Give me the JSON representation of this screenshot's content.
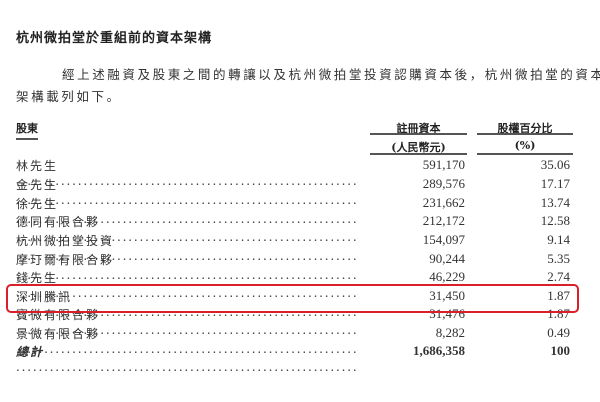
{
  "title": "杭州微拍堂於重組前的資本架構",
  "paragraph": [
    "經上述融資及股東之間的轉讓以及杭州微拍堂投資認購資本後，杭州微拍堂的資本",
    "架構載列如下。"
  ],
  "table": {
    "headers": {
      "shareholder": "股東",
      "capital": "註冊資本",
      "capital_unit": "(人民幣元)",
      "percent": "股權百分比",
      "percent_unit": "(%)"
    },
    "rows": [
      {
        "name": "林先生",
        "capital": "591,170",
        "percent": "35.06"
      },
      {
        "name": "金先生",
        "capital": "289,576",
        "percent": "17.17"
      },
      {
        "name": "徐先生",
        "capital": "231,662",
        "percent": "13.74"
      },
      {
        "name": "德同有限合夥",
        "capital": "212,172",
        "percent": "12.58"
      },
      {
        "name": "杭州微拍堂投資",
        "capital": "154,097",
        "percent": "9.14"
      },
      {
        "name": "摩玎爾有限合夥",
        "capital": "90,244",
        "percent": "5.35"
      },
      {
        "name": "錢先生",
        "capital": "46,229",
        "percent": "2.74"
      },
      {
        "name": "深圳騰訊",
        "capital": "31,450",
        "percent": "1.87"
      },
      {
        "name": "寶微有限合夥",
        "capital": "31,476",
        "percent": "1.87"
      },
      {
        "name": "景微有限合夥",
        "capital": "8,282",
        "percent": "0.49"
      }
    ],
    "total": {
      "name": "總計",
      "capital": "1,686,358",
      "percent": "100"
    }
  },
  "highlight": {
    "row": "深圳騰訊",
    "color": "#d9202a"
  }
}
